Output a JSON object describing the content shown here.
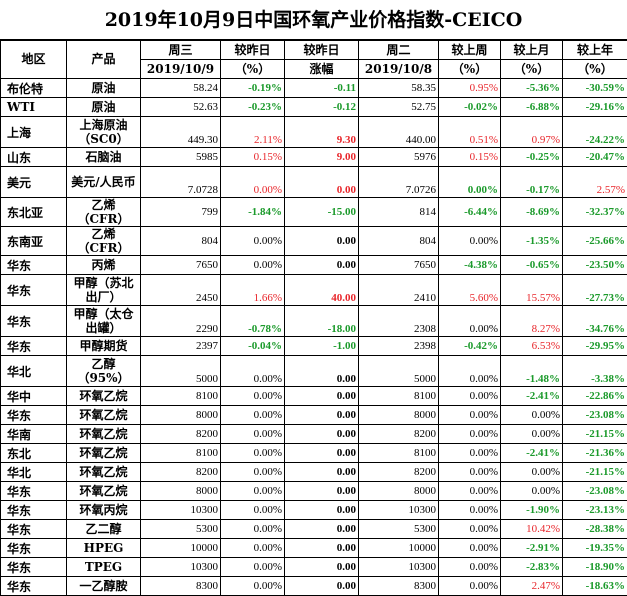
{
  "title": "2019年10月9日中国环氧产业价格指数-CEICO",
  "headers": {
    "region": "地区",
    "product": "产品",
    "wed": "周三",
    "wed_date": "2019/10/9",
    "vs_prev": "较昨日",
    "vs_prev_unit": "（%）",
    "vs_prev2": "较昨日",
    "vs_prev2_sub": "涨幅",
    "tue": "周二",
    "tue_date": "2019/10/8",
    "vs_week": "较上周",
    "vs_week_unit": "（%）",
    "vs_month": "较上月",
    "vs_month_unit": "（%）",
    "vs_year": "较上年",
    "vs_year_unit": "（%）"
  },
  "rows": [
    {
      "region": "布伦特",
      "product": "原油",
      "wed": "58.24",
      "pct": "-0.19%",
      "chg": "-0.11",
      "tue": "58.35",
      "week": "0.95%",
      "month": "-5.36%",
      "year": "-30.59%",
      "c": [
        "g",
        "g",
        "b",
        "r",
        "g",
        "g"
      ],
      "tall": false
    },
    {
      "region": "WTI",
      "product": "原油",
      "wed": "52.63",
      "pct": "-0.23%",
      "chg": "-0.12",
      "tue": "52.75",
      "week": "-0.02%",
      "month": "-6.88%",
      "year": "-29.16%",
      "c": [
        "g",
        "g",
        "b",
        "g",
        "g",
        "g"
      ],
      "tall": false
    },
    {
      "region": "上海",
      "product": "上海原油（SC0）",
      "wed": "449.30",
      "pct": "2.11%",
      "chg": "9.30",
      "tue": "440.00",
      "week": "0.51%",
      "month": "0.97%",
      "year": "-24.22%",
      "c": [
        "r",
        "r",
        "b",
        "r",
        "r",
        "g"
      ],
      "tall": true
    },
    {
      "region": "山东",
      "product": "石脑油",
      "wed": "5985",
      "pct": "0.15%",
      "chg": "9.00",
      "tue": "5976",
      "week": "0.15%",
      "month": "-0.25%",
      "year": "-20.47%",
      "c": [
        "r",
        "r",
        "b",
        "r",
        "g",
        "g"
      ],
      "tall": false
    },
    {
      "region": "美元",
      "product": "美元/人民币",
      "wed": "7.0728",
      "pct": "0.00%",
      "chg": "0.00",
      "tue": "7.0726",
      "week": "0.00%",
      "month": "-0.17%",
      "year": "2.57%",
      "c": [
        "r",
        "r",
        "b",
        "g",
        "g",
        "r"
      ],
      "tall": true
    },
    {
      "region": "东北亚",
      "product": "乙烯（CFR）",
      "wed": "799",
      "pct": "-1.84%",
      "chg": "-15.00",
      "tue": "814",
      "week": "-6.44%",
      "month": "-8.69%",
      "year": "-32.37%",
      "c": [
        "g",
        "g",
        "b",
        "g",
        "g",
        "g"
      ],
      "tall": false
    },
    {
      "region": "东南亚",
      "product": "乙烯（CFR）",
      "wed": "804",
      "pct": "0.00%",
      "chg": "0.00",
      "tue": "804",
      "week": "0.00%",
      "month": "-1.35%",
      "year": "-25.66%",
      "c": [
        "k",
        "k",
        "b",
        "k",
        "g",
        "g"
      ],
      "tall": false
    },
    {
      "region": "华东",
      "product": "丙烯",
      "wed": "7650",
      "pct": "0.00%",
      "chg": "0.00",
      "tue": "7650",
      "week": "-4.38%",
      "month": "-0.65%",
      "year": "-23.50%",
      "c": [
        "k",
        "k",
        "b",
        "g",
        "g",
        "g"
      ],
      "tall": false
    },
    {
      "region": "华东",
      "product": "甲醇（苏北出厂）",
      "wed": "2450",
      "pct": "1.66%",
      "chg": "40.00",
      "tue": "2410",
      "week": "5.60%",
      "month": "15.57%",
      "year": "-27.73%",
      "c": [
        "r",
        "r",
        "b",
        "r",
        "r",
        "g"
      ],
      "tall": true
    },
    {
      "region": "华东",
      "product": "甲醇（太仓出罐）",
      "wed": "2290",
      "pct": "-0.78%",
      "chg": "-18.00",
      "tue": "2308",
      "week": "0.00%",
      "month": "8.27%",
      "year": "-34.76%",
      "c": [
        "g",
        "g",
        "b",
        "k",
        "r",
        "g"
      ],
      "tall": true
    },
    {
      "region": "华东",
      "product": "甲醇期货",
      "wed": "2397",
      "pct": "-0.04%",
      "chg": "-1.00",
      "tue": "2398",
      "week": "-0.42%",
      "month": "6.53%",
      "year": "-29.95%",
      "c": [
        "g",
        "g",
        "b",
        "g",
        "r",
        "g"
      ],
      "tall": false
    },
    {
      "region": "华北",
      "product": "乙醇（95%）",
      "wed": "5000",
      "pct": "0.00%",
      "chg": "0.00",
      "tue": "5000",
      "week": "0.00%",
      "month": "-1.48%",
      "year": "-3.38%",
      "c": [
        "k",
        "k",
        "b",
        "k",
        "g",
        "g"
      ],
      "tall": true
    },
    {
      "region": "华中",
      "product": "环氧乙烷",
      "wed": "8100",
      "pct": "0.00%",
      "chg": "0.00",
      "tue": "8100",
      "week": "0.00%",
      "month": "-2.41%",
      "year": "-22.86%",
      "c": [
        "k",
        "k",
        "b",
        "k",
        "g",
        "g"
      ],
      "tall": false
    },
    {
      "region": "华东",
      "product": "环氧乙烷",
      "wed": "8000",
      "pct": "0.00%",
      "chg": "0.00",
      "tue": "8000",
      "week": "0.00%",
      "month": "0.00%",
      "year": "-23.08%",
      "c": [
        "k",
        "k",
        "b",
        "k",
        "k",
        "g"
      ],
      "tall": false
    },
    {
      "region": "华南",
      "product": "环氧乙烷",
      "wed": "8200",
      "pct": "0.00%",
      "chg": "0.00",
      "tue": "8200",
      "week": "0.00%",
      "month": "0.00%",
      "year": "-21.15%",
      "c": [
        "k",
        "k",
        "b",
        "k",
        "k",
        "g"
      ],
      "tall": false
    },
    {
      "region": "东北",
      "product": "环氧乙烷",
      "wed": "8100",
      "pct": "0.00%",
      "chg": "0.00",
      "tue": "8100",
      "week": "0.00%",
      "month": "-2.41%",
      "year": "-21.36%",
      "c": [
        "k",
        "k",
        "b",
        "k",
        "g",
        "g"
      ],
      "tall": false
    },
    {
      "region": "华北",
      "product": "环氧乙烷",
      "wed": "8200",
      "pct": "0.00%",
      "chg": "0.00",
      "tue": "8200",
      "week": "0.00%",
      "month": "0.00%",
      "year": "-21.15%",
      "c": [
        "k",
        "k",
        "b",
        "k",
        "k",
        "g"
      ],
      "tall": false
    },
    {
      "region": "华东",
      "product": "环氧乙烷",
      "wed": "8000",
      "pct": "0.00%",
      "chg": "0.00",
      "tue": "8000",
      "week": "0.00%",
      "month": "0.00%",
      "year": "-23.08%",
      "c": [
        "k",
        "k",
        "b",
        "k",
        "k",
        "g"
      ],
      "tall": false
    },
    {
      "region": "华东",
      "product": "环氧丙烷",
      "wed": "10300",
      "pct": "0.00%",
      "chg": "0.00",
      "tue": "10300",
      "week": "0.00%",
      "month": "-1.90%",
      "year": "-23.13%",
      "c": [
        "k",
        "k",
        "b",
        "k",
        "g",
        "g"
      ],
      "tall": false
    },
    {
      "region": "华东",
      "product": "乙二醇",
      "wed": "5300",
      "pct": "0.00%",
      "chg": "0.00",
      "tue": "5300",
      "week": "0.00%",
      "month": "10.42%",
      "year": "-28.38%",
      "c": [
        "k",
        "k",
        "b",
        "k",
        "r",
        "g"
      ],
      "tall": false
    },
    {
      "region": "华东",
      "product": "HPEG",
      "wed": "10000",
      "pct": "0.00%",
      "chg": "0.00",
      "tue": "10000",
      "week": "0.00%",
      "month": "-2.91%",
      "year": "-19.35%",
      "c": [
        "k",
        "k",
        "b",
        "k",
        "g",
        "g"
      ],
      "tall": false
    },
    {
      "region": "华东",
      "product": "TPEG",
      "wed": "10300",
      "pct": "0.00%",
      "chg": "0.00",
      "tue": "10300",
      "week": "0.00%",
      "month": "-2.83%",
      "year": "-18.90%",
      "c": [
        "k",
        "k",
        "b",
        "k",
        "g",
        "g"
      ],
      "tall": false
    },
    {
      "region": "华东",
      "product": "一乙醇胺",
      "wed": "8300",
      "pct": "0.00%",
      "chg": "0.00",
      "tue": "8300",
      "week": "0.00%",
      "month": "2.47%",
      "year": "-18.63%",
      "c": [
        "k",
        "k",
        "b",
        "k",
        "r",
        "g"
      ],
      "tall": false
    }
  ]
}
